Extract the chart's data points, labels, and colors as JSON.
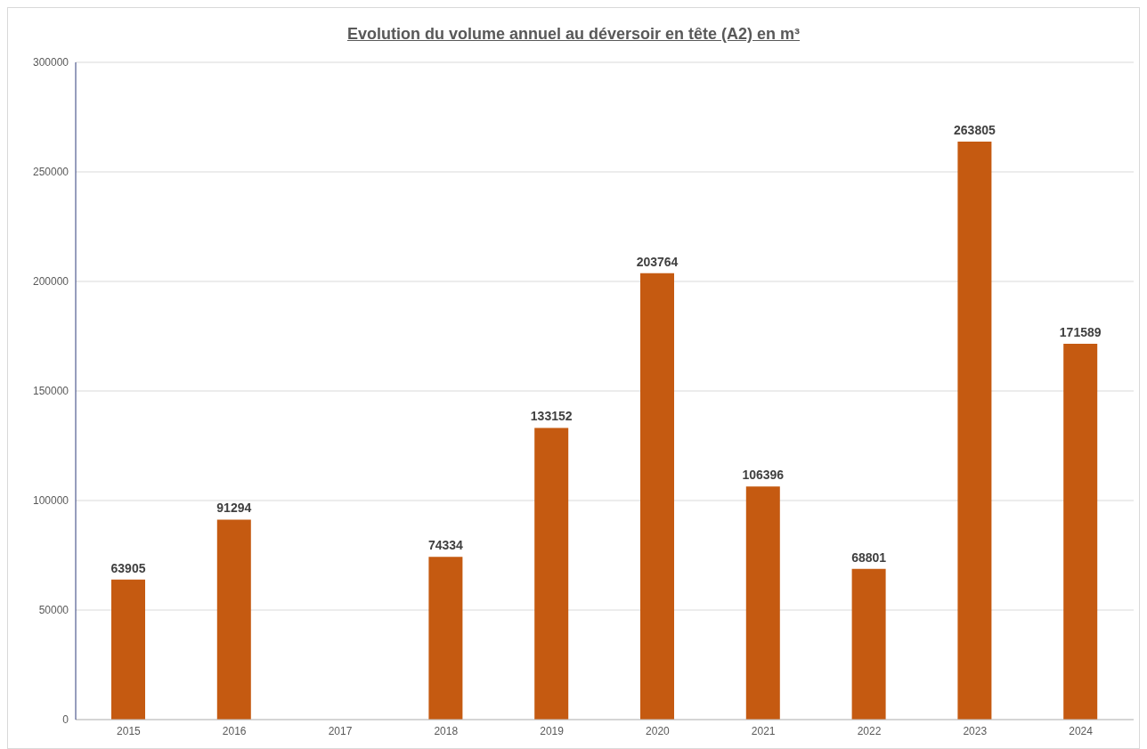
{
  "chart_data": {
    "type": "bar",
    "title": "Evolution du volume annuel au déversoir en tête (A2) en m³",
    "categories": [
      "2015",
      "2016",
      "2017",
      "2018",
      "2019",
      "2020",
      "2021",
      "2022",
      "2023",
      "2024"
    ],
    "values": [
      63905,
      91294,
      null,
      74334,
      133152,
      203764,
      106396,
      68801,
      263805,
      171589
    ],
    "color": "#c55a11",
    "ylim": [
      0,
      300000
    ],
    "yticks": [
      0,
      50000,
      100000,
      150000,
      200000,
      250000,
      300000
    ],
    "grid": "y",
    "data_labels": true
  }
}
